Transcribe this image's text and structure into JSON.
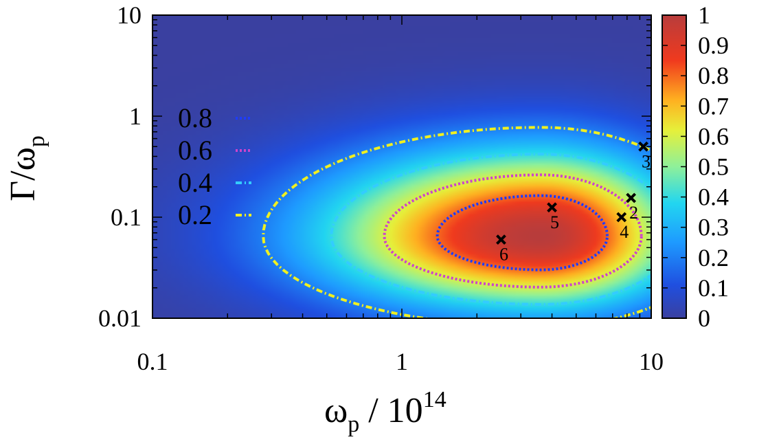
{
  "chart_data": {
    "type": "heatmap",
    "x_axis": {
      "label_main": "ω",
      "label_sub": "p",
      "label_rest": " / 10",
      "label_sup": "14",
      "scale": "log",
      "range": [
        0.1,
        10
      ],
      "ticks": [
        {
          "value": 0.1,
          "label": "0.1"
        },
        {
          "value": 1,
          "label": "1"
        },
        {
          "value": 10,
          "label": "10"
        }
      ]
    },
    "y_axis": {
      "label_main": "Γ/ω",
      "label_sub": "p",
      "scale": "log",
      "range": [
        0.01,
        10
      ],
      "ticks": [
        {
          "value": 0.01,
          "label": "0.01"
        },
        {
          "value": 0.1,
          "label": "0.1"
        },
        {
          "value": 1,
          "label": "1"
        },
        {
          "value": 10,
          "label": "10"
        }
      ]
    },
    "colorbar": {
      "range": [
        0,
        1
      ],
      "ticks": [
        "0",
        "0.1",
        "0.2",
        "0.3",
        "0.4",
        "0.5",
        "0.6",
        "0.7",
        "0.8",
        "0.9",
        "1"
      ],
      "colormap": "jet"
    },
    "field_peak": {
      "x": 3.6,
      "y": 0.065,
      "value": 1.0
    },
    "contours": [
      {
        "level": 0.8,
        "label": "0.8",
        "color": "#1e3cff",
        "style": "dotted"
      },
      {
        "level": 0.6,
        "label": "0.6",
        "color": "#cc44cc",
        "style": "dotted"
      },
      {
        "level": 0.4,
        "label": "0.4",
        "color": "#33ccff",
        "style": "dash-dot"
      },
      {
        "level": 0.2,
        "label": "0.2",
        "color": "#f0f020",
        "style": "dash-dot"
      }
    ],
    "legend_placement": "left-middle",
    "points": [
      {
        "label": "2",
        "marker": "x",
        "x": 8.3,
        "y": 0.155
      },
      {
        "label": "3",
        "marker": "x",
        "x": 9.3,
        "y": 0.5
      },
      {
        "label": "4",
        "marker": "x",
        "x": 7.6,
        "y": 0.1
      },
      {
        "label": "5",
        "marker": "x",
        "x": 4.0,
        "y": 0.125
      },
      {
        "label": "6",
        "marker": "x",
        "x": 2.5,
        "y": 0.06
      }
    ]
  }
}
